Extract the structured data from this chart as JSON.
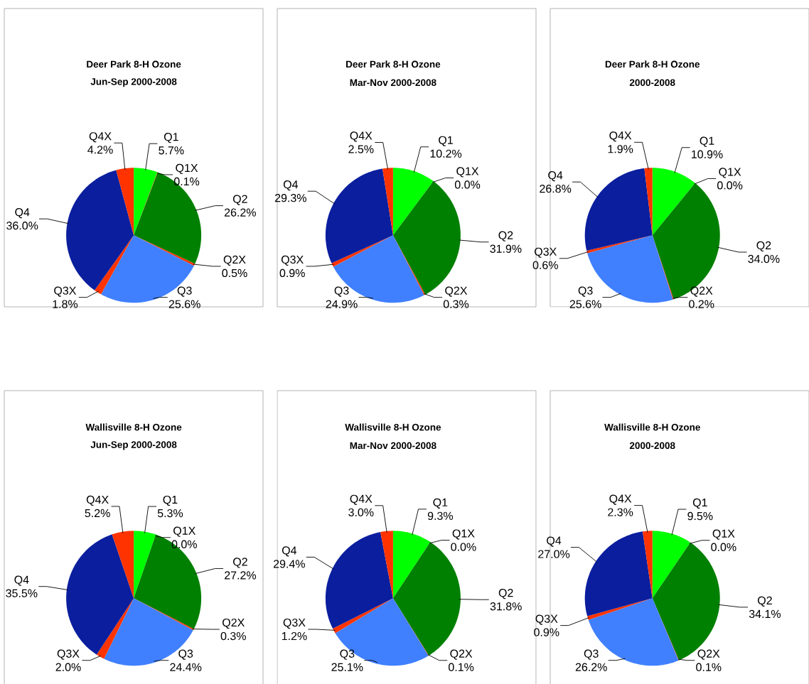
{
  "chart_data": [
    {
      "type": "pie",
      "title": "Deer Park 8-H Ozone",
      "subtitle": "Jun-Sep 2000-2008",
      "categories": [
        "Q1",
        "Q1X",
        "Q2",
        "Q2X",
        "Q3",
        "Q3X",
        "Q4",
        "Q4X"
      ],
      "values": [
        5.7,
        0.1,
        26.2,
        0.5,
        25.6,
        1.8,
        36.0,
        4.2
      ],
      "value_labels": [
        "5.7%",
        "0.1%",
        "26.2%",
        "0.5%",
        "25.6%",
        "1.8%",
        "36.0%",
        "4.2%"
      ],
      "colors": [
        "#00ff00",
        "#ff3300",
        "#008000",
        "#ff3300",
        "#4080ff",
        "#ff3300",
        "#0a1e9e",
        "#ff3300"
      ]
    },
    {
      "type": "pie",
      "title": "Deer Park 8-H Ozone",
      "subtitle": "Mar-Nov 2000-2008",
      "categories": [
        "Q1",
        "Q1X",
        "Q2",
        "Q2X",
        "Q3",
        "Q3X",
        "Q4",
        "Q4X"
      ],
      "values": [
        10.2,
        0.0,
        31.9,
        0.3,
        24.9,
        0.9,
        29.3,
        2.5
      ],
      "value_labels": [
        "10.2%",
        "0.0%",
        "31.9%",
        "0.3%",
        "24.9%",
        "0.9%",
        "29.3%",
        "2.5%"
      ],
      "colors": [
        "#00ff00",
        "#ff3300",
        "#008000",
        "#ff3300",
        "#4080ff",
        "#ff3300",
        "#0a1e9e",
        "#ff3300"
      ]
    },
    {
      "type": "pie",
      "title": "Deer Park 8-H Ozone",
      "subtitle": "2000-2008",
      "categories": [
        "Q1",
        "Q1X",
        "Q2",
        "Q2X",
        "Q3",
        "Q3X",
        "Q4",
        "Q4X"
      ],
      "values": [
        10.9,
        0.0,
        34.0,
        0.2,
        25.6,
        0.6,
        26.8,
        1.9
      ],
      "value_labels": [
        "10.9%",
        "0.0%",
        "34.0%",
        "0.2%",
        "25.6%",
        "0.6%",
        "26.8%",
        "1.9%"
      ],
      "colors": [
        "#00ff00",
        "#ff3300",
        "#008000",
        "#ff3300",
        "#4080ff",
        "#ff3300",
        "#0a1e9e",
        "#ff3300"
      ]
    },
    {
      "type": "pie",
      "title": "Wallisville 8-H Ozone",
      "subtitle": "Jun-Sep 2000-2008",
      "categories": [
        "Q1",
        "Q1X",
        "Q2",
        "Q2X",
        "Q3",
        "Q3X",
        "Q4",
        "Q4X"
      ],
      "values": [
        5.3,
        0.0,
        27.2,
        0.3,
        24.4,
        2.0,
        35.5,
        5.2
      ],
      "value_labels": [
        "5.3%",
        "0.0%",
        "27.2%",
        "0.3%",
        "24.4%",
        "2.0%",
        "35.5%",
        "5.2%"
      ],
      "colors": [
        "#00ff00",
        "#ff3300",
        "#008000",
        "#ff3300",
        "#4080ff",
        "#ff3300",
        "#0a1e9e",
        "#ff3300"
      ]
    },
    {
      "type": "pie",
      "title": "Wallisville 8-H Ozone",
      "subtitle": "Mar-Nov 2000-2008",
      "categories": [
        "Q1",
        "Q1X",
        "Q2",
        "Q2X",
        "Q3",
        "Q3X",
        "Q4",
        "Q4X"
      ],
      "values": [
        9.3,
        0.0,
        31.8,
        0.1,
        25.1,
        1.2,
        29.4,
        3.0
      ],
      "value_labels": [
        "9.3%",
        "0.0%",
        "31.8%",
        "0.1%",
        "25.1%",
        "1.2%",
        "29.4%",
        "3.0%"
      ],
      "colors": [
        "#00ff00",
        "#ff3300",
        "#008000",
        "#ff3300",
        "#4080ff",
        "#ff3300",
        "#0a1e9e",
        "#ff3300"
      ]
    },
    {
      "type": "pie",
      "title": "Wallisville 8-H Ozone",
      "subtitle": "2000-2008",
      "categories": [
        "Q1",
        "Q1X",
        "Q2",
        "Q2X",
        "Q3",
        "Q3X",
        "Q4",
        "Q4X"
      ],
      "values": [
        9.5,
        0.0,
        34.1,
        0.1,
        26.2,
        0.9,
        27.0,
        2.3
      ],
      "value_labels": [
        "9.5%",
        "0.0%",
        "34.1%",
        "0.1%",
        "26.2%",
        "0.9%",
        "27.0%",
        "2.3%"
      ],
      "colors": [
        "#00ff00",
        "#ff3300",
        "#008000",
        "#ff3300",
        "#4080ff",
        "#ff3300",
        "#0a1e9e",
        "#ff3300"
      ]
    }
  ]
}
